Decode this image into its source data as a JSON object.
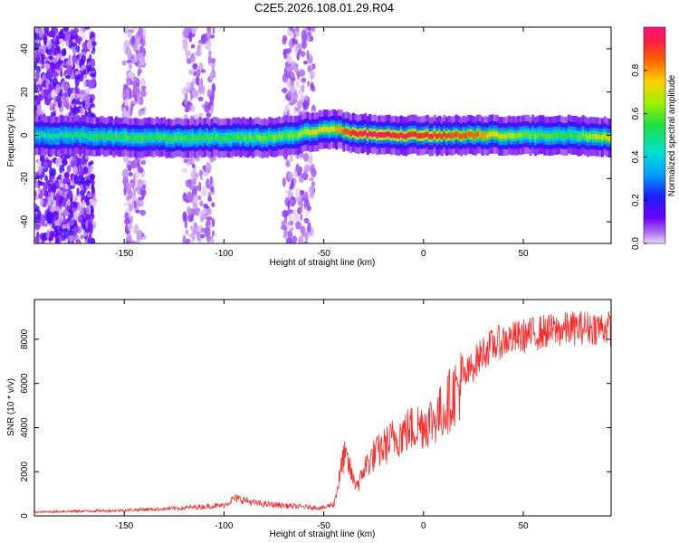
{
  "figure": {
    "title": "C2E5.2026.108.01.29.R04"
  },
  "colorbar": {
    "label": "Normalized spectral amplitude",
    "ticks": [
      "0.0",
      "0.2",
      "0.4",
      "0.6",
      "0.8"
    ],
    "tick_values": [
      0.0,
      0.2,
      0.4,
      0.6,
      0.8
    ],
    "range": [
      0,
      1
    ],
    "colors": [
      "#e8d8f8",
      "#b070f0",
      "#6a00ff",
      "#1a20ff",
      "#00a0ff",
      "#00e0d0",
      "#20e040",
      "#a0f000",
      "#ffd000",
      "#ff6000",
      "#ff2040",
      "#ff1080"
    ]
  },
  "chart_data": [
    {
      "type": "heatmap",
      "title": "C2E5.2026.108.01.29.R04",
      "xlabel": "Height of straight line (km)",
      "ylabel": "Frequency (Hz)",
      "xlim": [
        -195,
        94
      ],
      "ylim": [
        -50,
        50
      ],
      "xticks": [
        "-150",
        "-100",
        "-50",
        "0",
        "50"
      ],
      "xtick_values": [
        -150,
        -100,
        -50,
        0,
        50
      ],
      "yticks": [
        "-40",
        "-20",
        "0",
        "20",
        "40"
      ],
      "ytick_values": [
        -40,
        -20,
        0,
        20,
        40
      ],
      "grid": false,
      "ridge": {
        "x": [
          -195,
          -175,
          -150,
          -125,
          -100,
          -80,
          -65,
          -55,
          -45,
          -35,
          -20,
          0,
          25,
          50,
          75,
          94
        ],
        "frequency": [
          0,
          0,
          -1,
          -1,
          -1,
          -1,
          0,
          2,
          3,
          1,
          0,
          0,
          0,
          0,
          0,
          -1
        ],
        "peak_amplitude": [
          0.45,
          0.5,
          0.55,
          0.55,
          0.55,
          0.6,
          0.6,
          0.7,
          0.75,
          0.95,
          0.95,
          0.92,
          0.85,
          0.6,
          0.55,
          0.75
        ]
      },
      "noise_bands_x": [
        [
          -195,
          -165
        ],
        [
          -150,
          -140
        ],
        [
          -120,
          -105
        ],
        [
          -70,
          -55
        ]
      ]
    },
    {
      "type": "line",
      "xlabel": "Height of straight line (km)",
      "ylabel": "SNR (10 * v/v)",
      "xlim": [
        -195,
        94
      ],
      "ylim": [
        0,
        9800
      ],
      "xticks": [
        "-150",
        "-100",
        "-50",
        "0",
        "50"
      ],
      "xtick_values": [
        -150,
        -100,
        -50,
        0,
        50
      ],
      "yticks": [
        "0",
        "2000",
        "4000",
        "6000",
        "8000"
      ],
      "ytick_values": [
        0,
        2000,
        4000,
        6000,
        8000
      ],
      "grid": false,
      "color": "#ff2a2a",
      "series": [
        {
          "x": [
            -195,
            -180,
            -165,
            -150,
            -140,
            -130,
            -120,
            -110,
            -100,
            -95,
            -90,
            -85,
            -80,
            -70,
            -60,
            -50,
            -45,
            -42,
            -40,
            -38,
            -35,
            -32,
            -30,
            -25,
            -20,
            -15,
            -10,
            -5,
            0,
            5,
            10,
            15,
            20,
            25,
            30,
            35,
            40,
            50,
            60,
            70,
            80,
            90,
            94
          ],
          "y": [
            150,
            180,
            200,
            220,
            260,
            280,
            320,
            380,
            420,
            700,
            650,
            520,
            480,
            420,
            360,
            320,
            500,
            1800,
            2800,
            2500,
            1600,
            1500,
            2200,
            2800,
            3200,
            3600,
            3900,
            4100,
            4300,
            4500,
            4900,
            5700,
            6300,
            7000,
            7600,
            7900,
            8100,
            8300,
            8500,
            8600,
            8700,
            8700,
            8650
          ]
        }
      ]
    }
  ]
}
